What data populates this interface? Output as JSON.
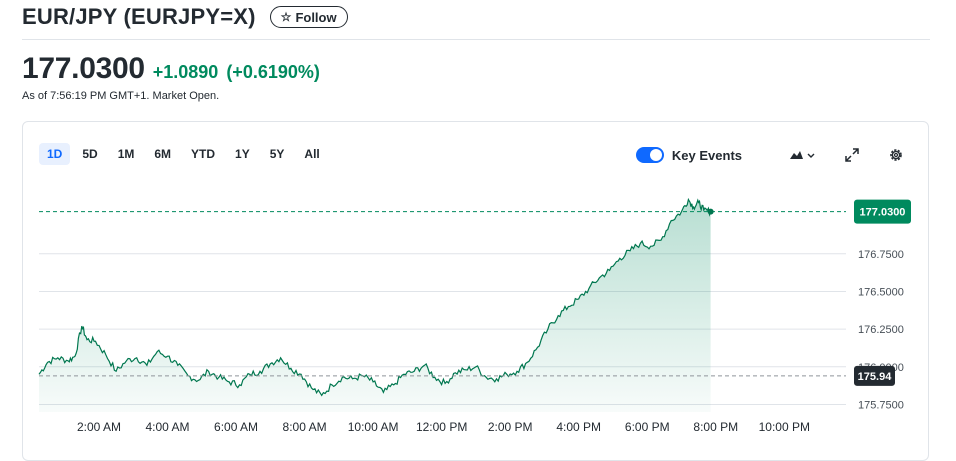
{
  "header": {
    "title": "EUR/JPY (EURJPY=X)",
    "follow_label": "Follow",
    "follow_icon": "star-outline-icon"
  },
  "quote": {
    "price": "177.0300",
    "change": "+1.0890",
    "change_pct": "(+0.6190%)",
    "as_of": "As of 7:56:19 PM GMT+1. Market Open."
  },
  "colors": {
    "accent": "#0f69ff",
    "up": "#008a5e",
    "line": "#00774f",
    "text": "#232a31",
    "grid": "#e0e4e9",
    "prev_close_badge": "#232a31"
  },
  "range_tabs": [
    {
      "label": "1D",
      "active": true
    },
    {
      "label": "5D",
      "active": false
    },
    {
      "label": "1M",
      "active": false
    },
    {
      "label": "6M",
      "active": false
    },
    {
      "label": "YTD",
      "active": false
    },
    {
      "label": "1Y",
      "active": false
    },
    {
      "label": "5Y",
      "active": false
    },
    {
      "label": "All",
      "active": false
    }
  ],
  "controls": {
    "key_events_label": "Key Events",
    "key_events_on": true,
    "chart_type_icon": "mountain-chart-icon",
    "expand_icon": "expand-icon",
    "settings_icon": "gear-icon"
  },
  "chart_data": {
    "type": "area",
    "title": "",
    "xlabel": "",
    "ylabel": "",
    "x_tick_labels": [
      "2:00 AM",
      "4:00 AM",
      "6:00 AM",
      "8:00 AM",
      "10:00 AM",
      "12:00 PM",
      "2:00 PM",
      "4:00 PM",
      "6:00 PM",
      "8:00 PM",
      "10:00 PM"
    ],
    "y_tick_labels": [
      "176.7500",
      "176.5000",
      "176.2500",
      "176.0000",
      "175.7500"
    ],
    "ylim": [
      175.7,
      177.16
    ],
    "x_range_hours": [
      0.25,
      23.8
    ],
    "previous_close": 175.94,
    "previous_close_label": "175.94",
    "current_price": 177.03,
    "current_price_label": "177.0300",
    "series": [
      {
        "x": [
          0.25,
          0.5,
          0.8,
          1.1,
          1.3,
          1.5,
          1.65,
          1.9,
          2.2,
          2.5,
          2.8,
          3.1,
          3.4,
          3.7,
          4.0,
          4.3,
          4.6,
          4.9,
          5.2,
          5.5,
          5.8,
          6.1,
          6.4,
          6.7,
          7.0,
          7.3,
          7.6,
          7.9,
          8.2,
          8.5,
          8.8,
          9.1,
          9.4,
          9.7,
          10.0,
          10.3,
          10.6,
          10.9,
          11.2,
          11.5,
          11.8,
          12.1,
          12.4,
          12.7,
          13.0,
          13.3,
          13.6,
          13.9,
          14.2,
          14.5,
          14.8,
          15.1,
          15.4,
          15.7,
          16.0,
          16.3,
          16.6,
          16.9,
          17.2,
          17.5,
          17.8,
          18.1,
          18.4,
          18.7,
          19.0,
          19.2,
          19.35,
          19.5,
          19.65,
          19.85
        ],
        "y": [
          175.95,
          176.03,
          176.06,
          176.04,
          176.07,
          176.27,
          176.18,
          176.17,
          176.08,
          175.97,
          176.04,
          176.06,
          176.01,
          176.1,
          176.07,
          176.01,
          175.94,
          175.91,
          175.97,
          175.93,
          175.9,
          175.88,
          175.95,
          175.97,
          176.02,
          176.06,
          175.99,
          175.95,
          175.86,
          175.81,
          175.88,
          175.93,
          175.92,
          175.94,
          175.9,
          175.83,
          175.88,
          175.95,
          175.97,
          176.01,
          175.93,
          175.89,
          175.96,
          175.98,
          176.0,
          175.93,
          175.92,
          175.95,
          175.97,
          176.03,
          176.13,
          176.25,
          176.34,
          176.4,
          176.45,
          176.52,
          176.59,
          176.64,
          176.72,
          176.77,
          176.82,
          176.8,
          176.84,
          176.97,
          177.03,
          177.11,
          177.06,
          177.09,
          177.04,
          177.03
        ]
      }
    ]
  }
}
